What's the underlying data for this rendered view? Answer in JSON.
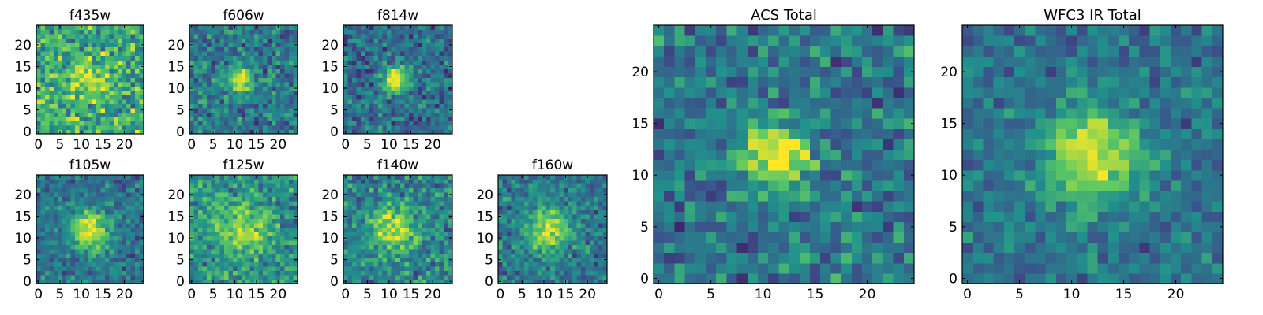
{
  "figure": {
    "background": "#ffffff",
    "colormap": "viridis",
    "colormap_stops": [
      "#440154",
      "#3b528b",
      "#21918c",
      "#5ec962",
      "#fde725"
    ]
  },
  "chart_data": [
    {
      "type": "heatmap",
      "title": "f435w",
      "grid_size": 25,
      "x_ticks": [
        0,
        5,
        10,
        15,
        20
      ],
      "y_ticks": [
        0,
        5,
        10,
        15,
        20
      ],
      "xlim": [
        0,
        25
      ],
      "ylim": [
        0,
        25
      ],
      "source_center": [
        11,
        12
      ],
      "source_sigma": 3.0,
      "source_amplitude": 0.25,
      "noise_level": 0.38,
      "base_level": 0.62,
      "grid": false
    },
    {
      "type": "heatmap",
      "title": "f606w",
      "grid_size": 25,
      "x_ticks": [
        0,
        5,
        10,
        15,
        20
      ],
      "y_ticks": [
        0,
        5,
        10,
        15,
        20
      ],
      "xlim": [
        0,
        25
      ],
      "ylim": [
        0,
        25
      ],
      "source_center": [
        11.5,
        12
      ],
      "source_sigma": 2.2,
      "source_amplitude": 0.6,
      "noise_level": 0.3,
      "base_level": 0.4,
      "grid": false
    },
    {
      "type": "heatmap",
      "title": "f814w",
      "grid_size": 25,
      "x_ticks": [
        0,
        5,
        10,
        15,
        20
      ],
      "y_ticks": [
        0,
        5,
        10,
        15,
        20
      ],
      "xlim": [
        0,
        25
      ],
      "ylim": [
        0,
        25
      ],
      "source_center": [
        11.5,
        12
      ],
      "source_sigma": 2.0,
      "source_amplitude": 0.7,
      "noise_level": 0.28,
      "base_level": 0.36,
      "grid": false
    },
    {
      "type": "heatmap",
      "title": "f105w",
      "grid_size": 25,
      "x_ticks": [
        0,
        5,
        10,
        15,
        20
      ],
      "y_ticks": [
        0,
        5,
        10,
        15,
        20
      ],
      "xlim": [
        0,
        25
      ],
      "ylim": [
        0,
        25
      ],
      "source_center": [
        12,
        12
      ],
      "source_sigma": 3.2,
      "source_amplitude": 0.6,
      "noise_level": 0.24,
      "base_level": 0.38,
      "grid": false
    },
    {
      "type": "heatmap",
      "title": "f125w",
      "grid_size": 25,
      "x_ticks": [
        0,
        5,
        10,
        15,
        20
      ],
      "y_ticks": [
        0,
        5,
        10,
        15,
        20
      ],
      "xlim": [
        0,
        25
      ],
      "ylim": [
        0,
        25
      ],
      "source_center": [
        12,
        12
      ],
      "source_sigma": 4.0,
      "source_amplitude": 0.4,
      "noise_level": 0.3,
      "base_level": 0.5,
      "grid": false
    },
    {
      "type": "heatmap",
      "title": "f140w",
      "grid_size": 25,
      "x_ticks": [
        0,
        5,
        10,
        15,
        20
      ],
      "y_ticks": [
        0,
        5,
        10,
        15,
        20
      ],
      "xlim": [
        0,
        25
      ],
      "ylim": [
        0,
        25
      ],
      "source_center": [
        11,
        12
      ],
      "source_sigma": 3.5,
      "source_amplitude": 0.5,
      "noise_level": 0.3,
      "base_level": 0.45,
      "grid": false
    },
    {
      "type": "heatmap",
      "title": "f160w",
      "grid_size": 25,
      "x_ticks": [
        0,
        5,
        10,
        15,
        20
      ],
      "y_ticks": [
        0,
        5,
        10,
        15,
        20
      ],
      "xlim": [
        0,
        25
      ],
      "ylim": [
        0,
        25
      ],
      "source_center": [
        11,
        11.5
      ],
      "source_sigma": 3.3,
      "source_amplitude": 0.55,
      "noise_level": 0.26,
      "base_level": 0.4,
      "grid": false
    },
    {
      "type": "heatmap",
      "title": "ACS Total",
      "grid_size": 25,
      "x_ticks": [
        0,
        5,
        10,
        15,
        20
      ],
      "y_ticks": [
        0,
        5,
        10,
        15,
        20
      ],
      "xlim": [
        0,
        25
      ],
      "ylim": [
        0,
        25
      ],
      "source_center": [
        11.5,
        12
      ],
      "source_sigma": 2.3,
      "source_amplitude": 0.6,
      "noise_level": 0.3,
      "base_level": 0.4,
      "grid": false
    },
    {
      "type": "heatmap",
      "title": "WFC3 IR Total",
      "grid_size": 25,
      "x_ticks": [
        0,
        5,
        10,
        15,
        20
      ],
      "y_ticks": [
        0,
        5,
        10,
        15,
        20
      ],
      "xlim": [
        0,
        25
      ],
      "ylim": [
        0,
        25
      ],
      "source_center": [
        12,
        12
      ],
      "source_sigma": 3.2,
      "source_amplitude": 0.6,
      "noise_level": 0.22,
      "base_level": 0.38,
      "grid": false
    }
  ]
}
